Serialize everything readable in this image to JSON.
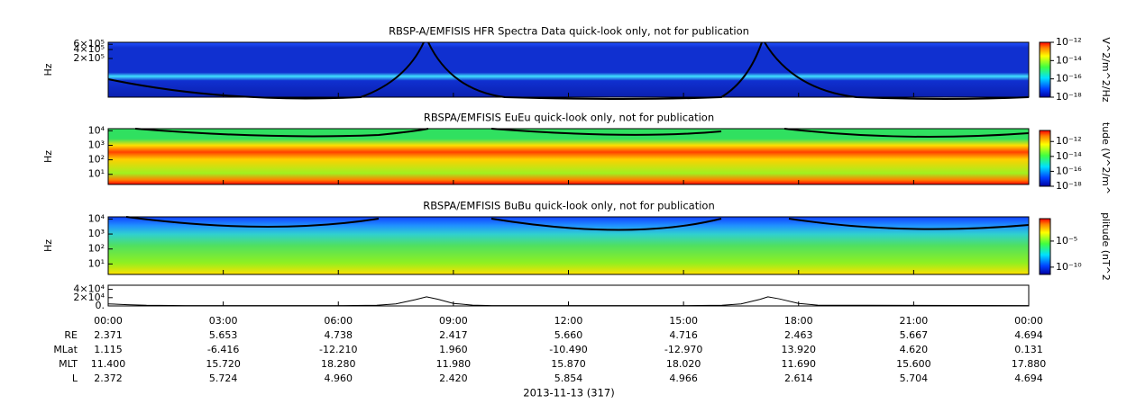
{
  "chart_data": [
    {
      "type": "spectrogram",
      "title": "RBSP-A/EMFISIS  HFR Spectra Data quick-look only, not for publication",
      "ylabel": "Hz",
      "log": true,
      "ylim": [
        10000,
        700000
      ],
      "yticks": [
        {
          "value": 200000,
          "label": "2×10⁵"
        },
        {
          "value": 400000,
          "label": "4×10⁵"
        },
        {
          "value": 600000,
          "label": "6×10⁵"
        }
      ],
      "colorbar": {
        "label": "V^2/m^2/Hz",
        "zlim": [
          1e-18,
          1e-12
        ],
        "ticks": [
          {
            "value": 1e-12,
            "label": "10⁻¹²"
          },
          {
            "value": 1e-14,
            "label": "10⁻¹⁴"
          },
          {
            "value": 1e-16,
            "label": "10⁻¹⁶"
          },
          {
            "value": 1e-18,
            "label": "10⁻¹⁸"
          }
        ]
      }
    },
    {
      "type": "spectrogram",
      "title": "RBSPA/EMFISIS  EuEu quick-look only, not for publication",
      "ylabel": "Hz",
      "log": true,
      "ylim": [
        2,
        14000
      ],
      "yticks": [
        {
          "value": 10,
          "label": "10¹"
        },
        {
          "value": 100,
          "label": "10²"
        },
        {
          "value": 1000,
          "label": "10³"
        },
        {
          "value": 10000,
          "label": "10⁴"
        }
      ],
      "colorbar": {
        "label": "tude (V^2/m^",
        "zlim": [
          1e-18,
          3e-11
        ],
        "ticks": [
          {
            "value": 1e-12,
            "label": "10⁻¹²"
          },
          {
            "value": 1e-14,
            "label": "10⁻¹⁴"
          },
          {
            "value": 1e-16,
            "label": "10⁻¹⁶"
          },
          {
            "value": 1e-18,
            "label": "10⁻¹⁸"
          }
        ]
      }
    },
    {
      "type": "spectrogram",
      "title": "RBSPA/EMFISIS  BuBu quick-look only, not for publication",
      "ylabel": "Hz",
      "log": true,
      "ylim": [
        2,
        14000
      ],
      "yticks": [
        {
          "value": 10,
          "label": "10¹"
        },
        {
          "value": 100,
          "label": "10²"
        },
        {
          "value": 1000,
          "label": "10³"
        },
        {
          "value": 10000,
          "label": "10⁴"
        }
      ],
      "colorbar": {
        "label": "plitude (nT^2",
        "zlim": [
          4e-12,
          0.2
        ],
        "ticks": [
          {
            "value": 1e-05,
            "label": "10⁻⁵"
          },
          {
            "value": 1e-10,
            "label": "10⁻¹⁰"
          }
        ]
      }
    },
    {
      "type": "line",
      "color": "#000000",
      "ylim": [
        0,
        50000
      ],
      "yticks": [
        {
          "value": 0,
          "label": "0."
        },
        {
          "value": 20000,
          "label": "2×10⁴"
        },
        {
          "value": 40000,
          "label": "4×10⁴"
        }
      ],
      "xlim": [
        0,
        24
      ],
      "xticks": [
        {
          "value": 0,
          "label": "00:00"
        },
        {
          "value": 3,
          "label": "03:00"
        },
        {
          "value": 6,
          "label": "06:00"
        },
        {
          "value": 9,
          "label": "09:00"
        },
        {
          "value": 12,
          "label": "12:00"
        },
        {
          "value": 15,
          "label": "15:00"
        },
        {
          "value": 18,
          "label": "18:00"
        },
        {
          "value": 21,
          "label": "21:00"
        },
        {
          "value": 24,
          "label": "00:00"
        }
      ],
      "x": [
        0,
        0.5,
        1,
        2,
        6,
        7,
        7.5,
        8,
        8.3,
        8.6,
        9,
        9.5,
        10,
        15,
        16,
        16.5,
        17,
        17.2,
        17.5,
        18,
        18.5,
        24
      ],
      "values": [
        5000,
        3000,
        1500,
        800,
        800,
        1500,
        5000,
        15000,
        22000,
        16000,
        6000,
        2000,
        800,
        800,
        1500,
        5000,
        16000,
        22000,
        17000,
        6000,
        2000,
        800
      ]
    }
  ],
  "ephemeris": {
    "rows": [
      {
        "label": "RE",
        "values": [
          "2.371",
          "5.653",
          "4.738",
          "2.417",
          "5.660",
          "4.716",
          "2.463",
          "5.667",
          "4.694"
        ]
      },
      {
        "label": "MLat",
        "values": [
          "1.115",
          "-6.416",
          "-12.210",
          "1.960",
          "-10.490",
          "-12.970",
          "13.920",
          "4.620",
          "0.131"
        ]
      },
      {
        "label": "MLT",
        "values": [
          "11.400",
          "15.720",
          "18.280",
          "11.980",
          "15.870",
          "18.020",
          "11.690",
          "15.600",
          "17.880"
        ]
      },
      {
        "label": "L",
        "values": [
          "2.372",
          "5.724",
          "4.960",
          "2.420",
          "5.854",
          "4.966",
          "2.614",
          "5.704",
          "4.694"
        ]
      }
    ],
    "date": "2013-11-13 (317)"
  }
}
